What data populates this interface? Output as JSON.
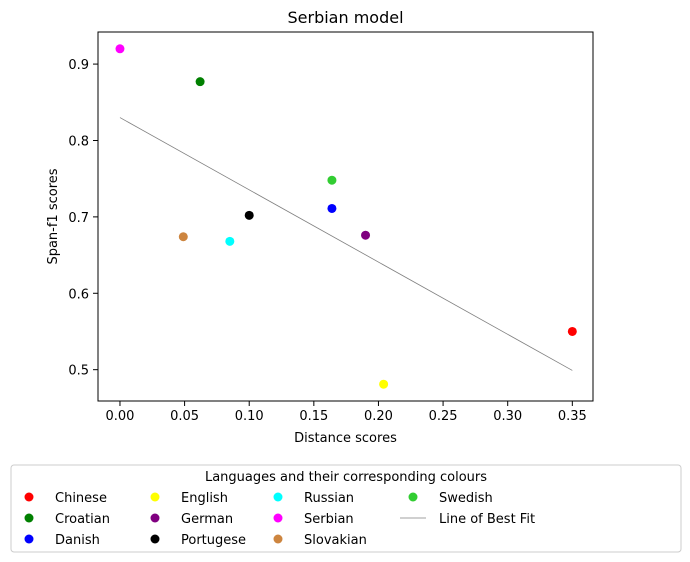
{
  "chart_data": {
    "type": "scatter",
    "title": "Serbian model",
    "xlabel": "Distance scores",
    "ylabel": "Span-f1 scores",
    "xlim": [
      -0.017,
      0.366
    ],
    "ylim": [
      0.459,
      0.942
    ],
    "xticks": [
      "0.00",
      "0.05",
      "0.10",
      "0.15",
      "0.20",
      "0.25",
      "0.30",
      "0.35"
    ],
    "xtick_values": [
      0.0,
      0.05,
      0.1,
      0.15,
      0.2,
      0.25,
      0.3,
      0.35
    ],
    "yticks": [
      "0.5",
      "0.6",
      "0.7",
      "0.8",
      "0.9"
    ],
    "ytick_values": [
      0.5,
      0.6,
      0.7,
      0.8,
      0.9
    ],
    "grid": false,
    "legend": {
      "title": "Languages and their corresponding colours",
      "placement": "bottom",
      "columns": 5
    },
    "series": [
      {
        "name": "Chinese",
        "color": "#ff0000",
        "x": [
          0.35
        ],
        "y": [
          0.55
        ]
      },
      {
        "name": "Croatian",
        "color": "#008000",
        "x": [
          0.062
        ],
        "y": [
          0.877
        ]
      },
      {
        "name": "Danish",
        "color": "#0000ff",
        "x": [
          0.164
        ],
        "y": [
          0.711
        ]
      },
      {
        "name": "English",
        "color": "#ffff00",
        "x": [
          0.204
        ],
        "y": [
          0.481
        ]
      },
      {
        "name": "German",
        "color": "#800080",
        "x": [
          0.19
        ],
        "y": [
          0.676
        ]
      },
      {
        "name": "Portugese",
        "color": "#000000",
        "x": [
          0.1
        ],
        "y": [
          0.702
        ]
      },
      {
        "name": "Russian",
        "color": "#00ffff",
        "x": [
          0.085
        ],
        "y": [
          0.668
        ]
      },
      {
        "name": "Serbian",
        "color": "#ff00ff",
        "x": [
          0.0
        ],
        "y": [
          0.92
        ]
      },
      {
        "name": "Slovakian",
        "color": "#cd853f",
        "x": [
          0.049
        ],
        "y": [
          0.674
        ]
      },
      {
        "name": "Swedish",
        "color": "#32cd32",
        "x": [
          0.164
        ],
        "y": [
          0.748
        ]
      }
    ],
    "fit_line": {
      "name": "Line of Best Fit",
      "color": "#808080",
      "x": [
        0.0,
        0.35
      ],
      "y": [
        0.83,
        0.499
      ]
    }
  }
}
